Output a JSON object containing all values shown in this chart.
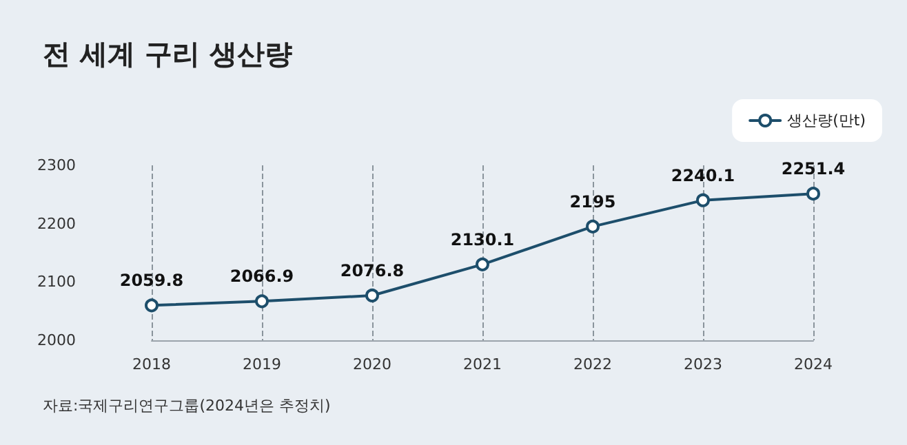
{
  "chart_data": {
    "type": "line",
    "title": "전 세계 구리 생산량",
    "categories": [
      "2018",
      "2019",
      "2020",
      "2021",
      "2022",
      "2023",
      "2024"
    ],
    "series": [
      {
        "name": "생산량(만t)",
        "color": "#1d4e6b",
        "values": [
          2059.8,
          2066.9,
          2076.8,
          2130.1,
          2195,
          2240.1,
          2251.4
        ]
      }
    ],
    "ylim": [
      2000,
      2300
    ],
    "yticks": [
      2000,
      2100,
      2200,
      2300
    ],
    "grid": "x",
    "legend": "top right",
    "marker": "circle",
    "line_style": "solid",
    "data_labels": true,
    "annotations": [
      "자료:국제구리연구그룹(2024년은 추정치)"
    ]
  }
}
